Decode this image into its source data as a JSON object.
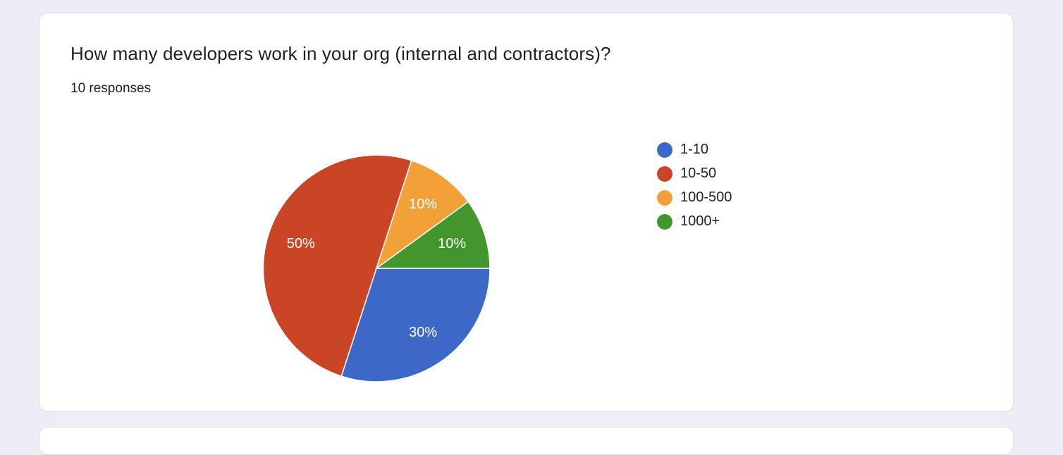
{
  "question": {
    "title": "How many developers work in your org (internal and contractors)?",
    "responses": "10 responses"
  },
  "chart_data": {
    "type": "pie",
    "title": "How many developers work in your org (internal and contractors)?",
    "total_responses": 10,
    "legend_position": "right",
    "slices": [
      {
        "label": "1-10",
        "value": 30,
        "display": "30%",
        "color": "#3d68c7"
      },
      {
        "label": "10-50",
        "value": 50,
        "display": "50%",
        "color": "#c94526"
      },
      {
        "label": "100-500",
        "value": 10,
        "display": "10%",
        "color": "#f2a139"
      },
      {
        "label": "1000+",
        "value": 10,
        "display": "10%",
        "color": "#43962e"
      }
    ]
  }
}
